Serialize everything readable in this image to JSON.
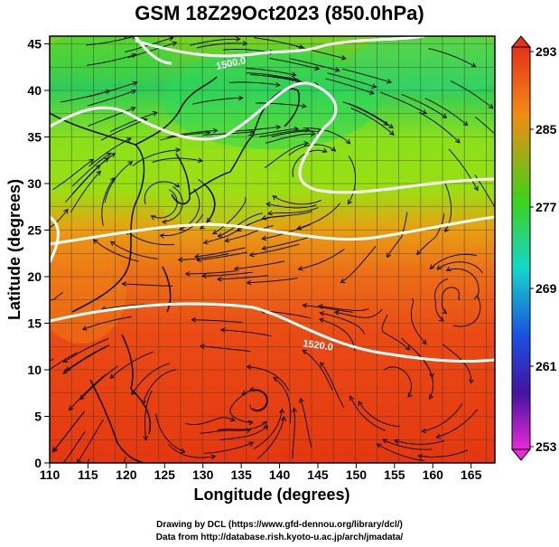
{
  "title": "GSM 18Z29Oct2023 (850.0hPa)",
  "xaxis": {
    "label": "Longitude (degrees)",
    "ticks": [
      "110",
      "115",
      "120",
      "125",
      "130",
      "135",
      "140",
      "145",
      "150",
      "155",
      "160",
      "165"
    ]
  },
  "yaxis": {
    "label": "Latitude (degrees)",
    "ticks": [
      "0",
      "5",
      "10",
      "15",
      "20",
      "25",
      "30",
      "35",
      "40",
      "45"
    ]
  },
  "colorbar": {
    "ticks": [
      "293",
      "285",
      "277",
      "269",
      "261",
      "253"
    ]
  },
  "contour_labels": {
    "upper": "1500.0",
    "lower": "1520.0"
  },
  "credits": {
    "line1": "Drawing by DCL (https://www.gfd-dennou.org/library/dcl/)",
    "line2": "Data from http://database.rish.kyoto-u.ac.jp/arch/jmadata/"
  },
  "colors": {
    "warm": "#e83a10",
    "mid": "#3ad01a",
    "cool": "#1a6adf",
    "contour": "#ffffff",
    "streamline": "#000000"
  }
}
